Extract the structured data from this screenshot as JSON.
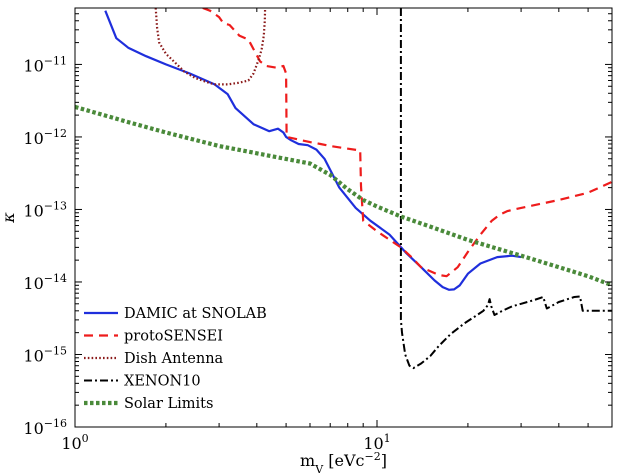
{
  "chart_data": {
    "type": "line",
    "title": "",
    "xlabel": "m",
    "xlabel_sub": "V",
    "xlabel_unit": " [eVc",
    "xlabel_unit_sup": "−2",
    "xlabel_unit_end": "]",
    "ylabel": "κ",
    "xscale": "log",
    "yscale": "log",
    "xlim": [
      1,
      60
    ],
    "ylim": [
      1e-16,
      6e-11
    ],
    "grid": false,
    "legend_position": "lower-left",
    "x_ticks": [
      {
        "value": 1,
        "base": "10",
        "exp": "0"
      },
      {
        "value": 10,
        "base": "10",
        "exp": "1"
      }
    ],
    "y_ticks": [
      {
        "value": 1e-16,
        "base": "10",
        "exp": "−16"
      },
      {
        "value": 1e-15,
        "base": "10",
        "exp": "−15"
      },
      {
        "value": 1e-14,
        "base": "10",
        "exp": "−14"
      },
      {
        "value": 1e-13,
        "base": "10",
        "exp": "−13"
      },
      {
        "value": 1e-12,
        "base": "10",
        "exp": "−12"
      },
      {
        "value": 1e-11,
        "base": "10",
        "exp": "−11"
      }
    ],
    "series": [
      {
        "name": "DAMIC at SNOLAB",
        "color": "#1f2fdc",
        "dash": "solid",
        "x": [
          1.26,
          1.37,
          1.5,
          1.72,
          2.0,
          2.4,
          2.9,
          3.2,
          3.4,
          3.9,
          4.4,
          4.7,
          4.9,
          5.0,
          5.2,
          5.5,
          5.9,
          6.3,
          6.7,
          7.5,
          8.5,
          9.5,
          11.0,
          12.5,
          14.0,
          15.5,
          16.5,
          17.3,
          18.0,
          18.8,
          20.0,
          22.0,
          25.0,
          28.0,
          30.0
        ],
        "y": [
          5.5e-11,
          2.3e-11,
          1.7e-11,
          1.3e-11,
          1e-11,
          7.5e-12,
          5.3e-12,
          3.9e-12,
          2.5e-12,
          1.5e-12,
          1.2e-12,
          1.3e-12,
          1.15e-12,
          1e-12,
          9e-13,
          8e-13,
          7.7e-13,
          6.7e-13,
          5e-13,
          2e-13,
          1.05e-13,
          7e-14,
          4.5e-14,
          2.5e-14,
          1.6e-14,
          1.05e-14,
          8.5e-15,
          7.8e-15,
          7.9e-15,
          9e-15,
          1.3e-14,
          1.8e-14,
          2.2e-14,
          2.3e-14,
          2.2e-14
        ]
      },
      {
        "name": "protoSENSEI",
        "color": "#ee1c1c",
        "dash": "dashed",
        "x": [
          2.65,
          2.8,
          3.0,
          3.1,
          3.25,
          3.5,
          3.75,
          4.1,
          4.3,
          4.65,
          4.9,
          5.0,
          5.02,
          6.0,
          6.5,
          7.0,
          8.8,
          8.85,
          9.0,
          10.0,
          12.0,
          13.0,
          14.0,
          16.0,
          17.0,
          18.5,
          20.0,
          22.0,
          24.0,
          25.5,
          27.0,
          30.0,
          35.0,
          40.0,
          50.0,
          60.0
        ],
        "y": [
          6e-11,
          5.5e-11,
          4.5e-11,
          3.7e-11,
          3.5e-11,
          2.5e-11,
          2.2e-11,
          1.1e-11,
          9.5e-12,
          9e-12,
          9.5e-12,
          7.5e-12,
          1e-12,
          8.5e-13,
          8e-13,
          7.5e-13,
          6.5e-13,
          2.1e-13,
          7e-14,
          5e-14,
          3e-14,
          2.2e-14,
          1.6e-14,
          1.25e-14,
          1.2e-14,
          1.6e-14,
          2.6e-14,
          4.5e-14,
          7e-14,
          8.5e-14,
          9.5e-14,
          1.05e-13,
          1.2e-13,
          1.35e-13,
          1.7e-13,
          2.4e-13
        ]
      },
      {
        "name": "Dish Antenna",
        "color": "#8b1a1a",
        "dash": "dotted",
        "x": [
          1.85,
          1.87,
          1.9,
          2.0,
          2.15,
          2.3,
          2.5,
          2.7,
          2.9,
          3.2,
          3.5,
          3.75,
          3.9,
          4.05,
          4.15,
          4.22,
          4.25,
          4.26
        ],
        "y": [
          6e-11,
          3.2e-11,
          2e-11,
          1.4e-11,
          1.05e-11,
          8e-12,
          6.5e-12,
          5.8e-12,
          5.3e-12,
          5.3e-12,
          5.6e-12,
          6e-12,
          7.5e-12,
          1.15e-11,
          1.6e-11,
          2.5e-11,
          4e-11,
          6e-11
        ]
      },
      {
        "name": "XENON10",
        "color": "#000000",
        "dash": "dashdot",
        "x": [
          12.0,
          12.0,
          12.1,
          12.4,
          12.8,
          13.2,
          14.0,
          15.0,
          16.0,
          17.5,
          19.5,
          21.0,
          22.5,
          23.3,
          23.6,
          23.9,
          24.5,
          26.0,
          28.0,
          30.0,
          33.0,
          35.5,
          36.5,
          38.0,
          40.0,
          45.0,
          47.0,
          48.0,
          50.0,
          60.0
        ],
        "y": [
          6e-11,
          3e-15,
          2e-15,
          1e-15,
          7e-16,
          6.5e-16,
          7.5e-16,
          9.5e-16,
          1.3e-15,
          1.9e-15,
          2.7e-15,
          3.3e-15,
          4e-15,
          4.8e-15,
          5.8e-15,
          4.6e-15,
          3.5e-15,
          4e-15,
          4.6e-15,
          5e-15,
          5.6e-15,
          6.2e-15,
          4.3e-15,
          4.7e-15,
          5.3e-15,
          6.2e-15,
          6.3e-15,
          4e-15,
          4e-15,
          4e-15
        ]
      },
      {
        "name": "Solar Limits",
        "color": "#4a8a3a",
        "dash": "dotted-thick",
        "x": [
          1.0,
          1.5,
          2.0,
          3.0,
          4.5,
          6.0,
          7.0,
          8.0,
          9.0,
          10.0,
          12.0,
          15.0,
          20.0,
          30.0,
          40.0,
          50.0,
          60.0
        ],
        "y": [
          2.6e-12,
          1.6e-12,
          1.15e-12,
          7.5e-13,
          5.4e-13,
          4.3e-13,
          3e-13,
          1.9e-13,
          1.35e-13,
          1.1e-13,
          8e-14,
          5.8e-14,
          3.8e-14,
          2.3e-14,
          1.6e-14,
          1.2e-14,
          9e-15
        ]
      }
    ]
  }
}
